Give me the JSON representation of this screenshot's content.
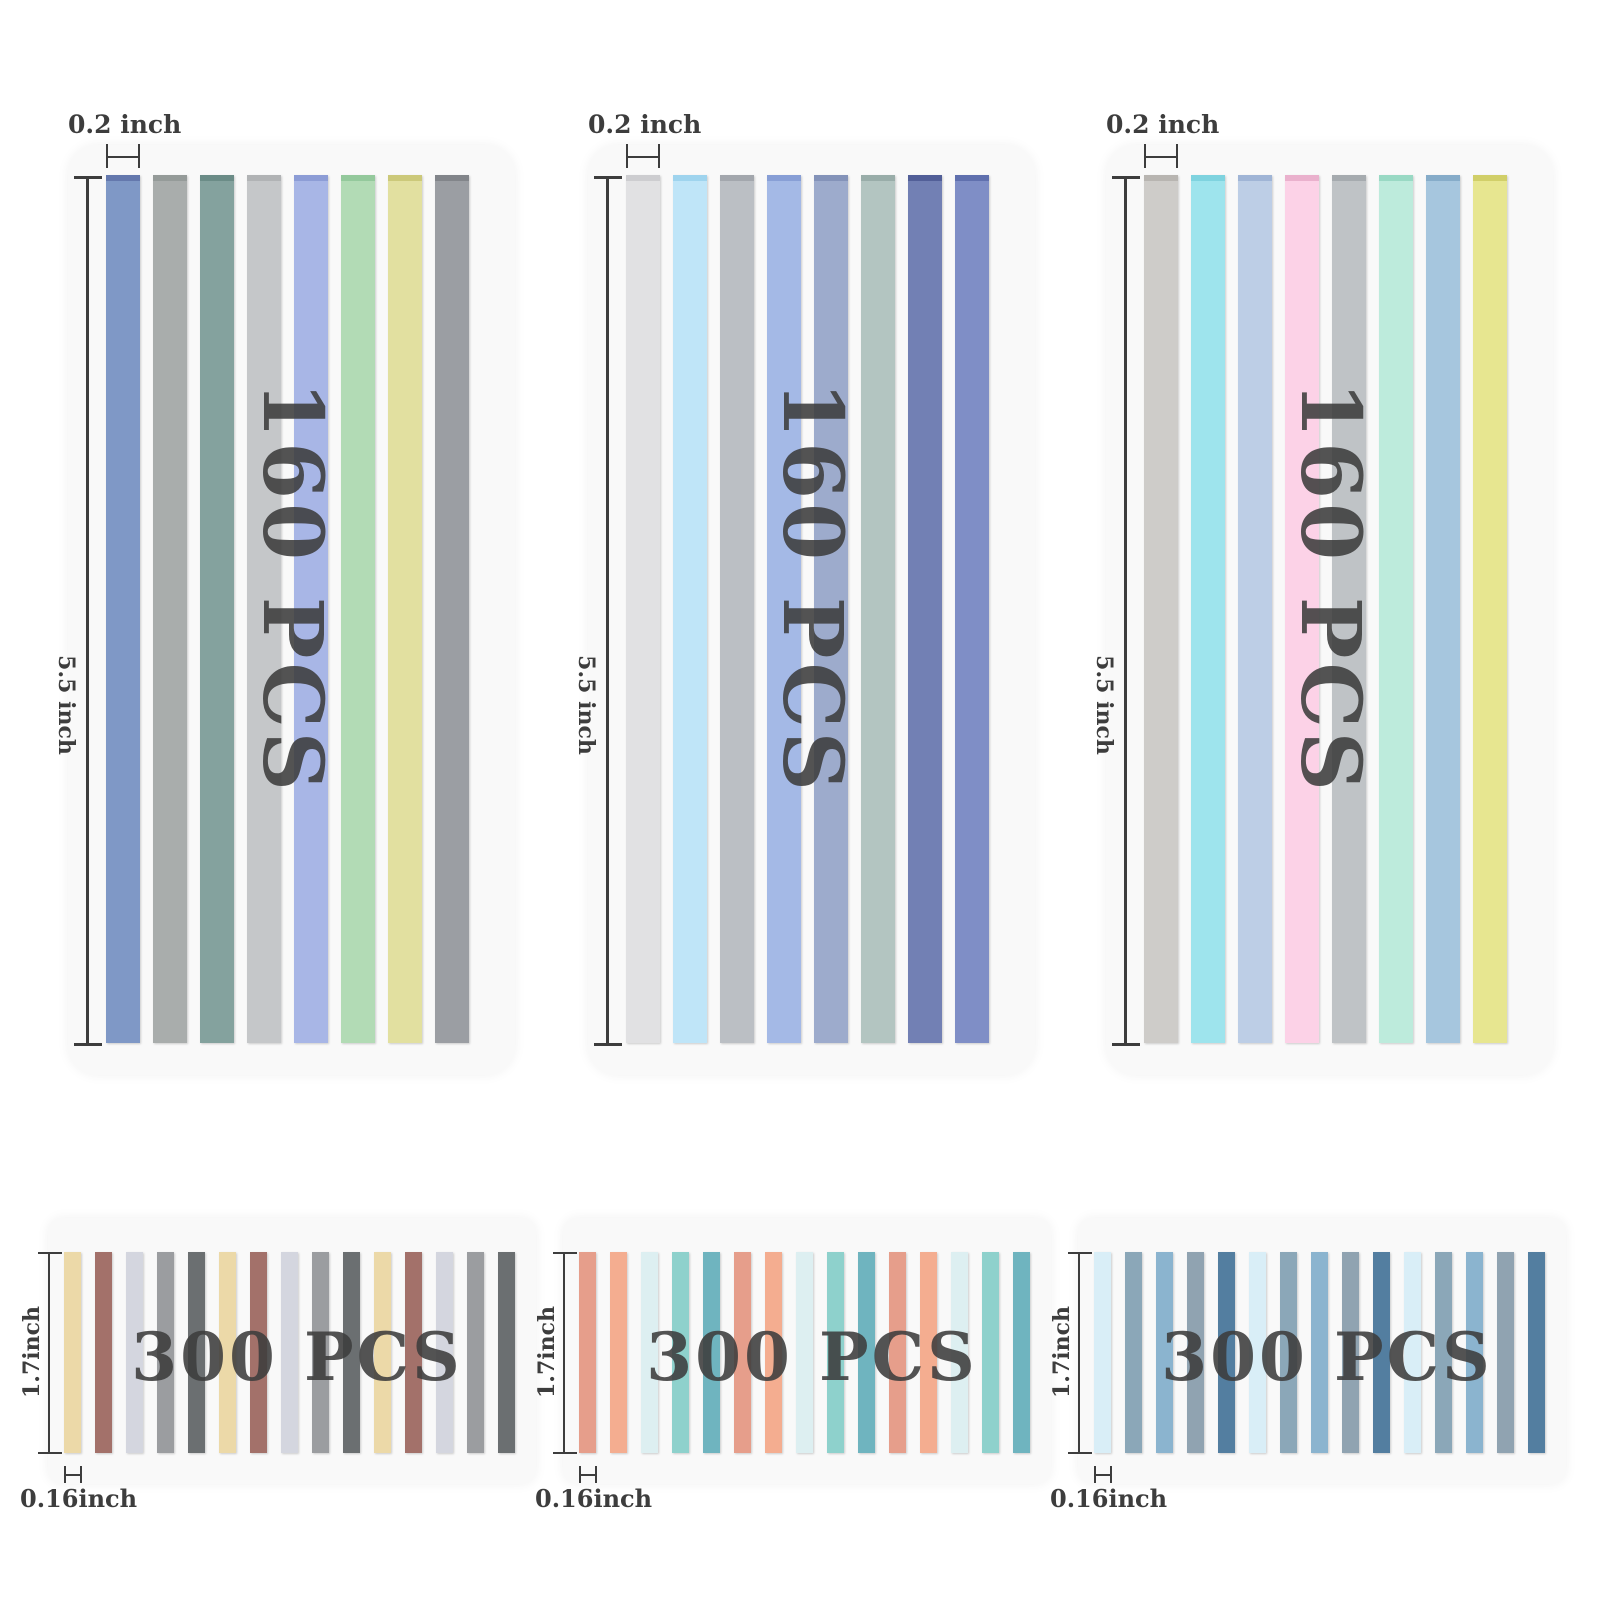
{
  "large_sets": [
    {
      "count_label": "160 PCS",
      "width_label": "0.2 inch",
      "height_label": "5.5 inch",
      "colors": [
        "#7f98c6",
        "#a9adac",
        "#84a29e",
        "#c5c7c9",
        "#a8b6e6",
        "#b2dbb5",
        "#e2e0a0",
        "#9b9ea3"
      ],
      "caps": [
        "#6478ad",
        "#959b99",
        "#6b8c87",
        "#b1b3b5",
        "#8d9dd6",
        "#94c99c",
        "#ccc97a",
        "#82858a"
      ]
    },
    {
      "count_label": "160 PCS",
      "width_label": "0.2 inch",
      "height_label": "5.5 inch",
      "colors": [
        "#e1e1e3",
        "#bfe5f8",
        "#bbbfc4",
        "#a4b9e6",
        "#9dabcc",
        "#b3c5c1",
        "#7280b4",
        "#7f8ec6"
      ],
      "caps": [
        "#cdcdd0",
        "#9fd4ee",
        "#a3a7ad",
        "#889fd6",
        "#8493b9",
        "#99ada9",
        "#525f98",
        "#6070ae"
      ]
    },
    {
      "count_label": "160 PCS",
      "width_label": "0.2 inch",
      "height_label": "5.5 inch",
      "colors": [
        "#ceccc9",
        "#9ee4ed",
        "#bdcee6",
        "#fcd2e7",
        "#bfc3c6",
        "#bdebdc",
        "#a6c6de",
        "#e7e690"
      ],
      "caps": [
        "#b8b5b1",
        "#7fd3df",
        "#a0b5d6",
        "#eab1cd",
        "#a6abaf",
        "#99d9c4",
        "#86acc9",
        "#d1cf69"
      ]
    }
  ],
  "small_sets": [
    {
      "count_label": "300 PCS",
      "width_label": "0.16inch",
      "height_label": "1.7inch",
      "colors": [
        "#ecd9a8",
        "#a3716a",
        "#d4d6df",
        "#9b9da0",
        "#6b6f71",
        "#ecd9a8",
        "#a3716a",
        "#d4d6df",
        "#9b9da0",
        "#6b6f71",
        "#ecd9a8",
        "#a3716a",
        "#d4d6df",
        "#9b9da0",
        "#6b6f71"
      ]
    },
    {
      "count_label": "300 PCS",
      "width_label": "0.16inch",
      "height_label": "1.7inch",
      "colors": [
        "#e69e8b",
        "#f4ad90",
        "#ddeff1",
        "#8ed1cc",
        "#6fb4bf",
        "#e69e8b",
        "#f4ad90",
        "#ddeff1",
        "#8ed1cc",
        "#6fb4bf",
        "#e69e8b",
        "#f4ad90",
        "#ddeff1",
        "#8ed1cc",
        "#6fb4bf"
      ]
    },
    {
      "count_label": "300 PCS",
      "width_label": "0.16inch",
      "height_label": "1.7inch",
      "colors": [
        "#d9eef7",
        "#8ba7b8",
        "#8bb4cf",
        "#90a3b1",
        "#537ea0",
        "#d9eef7",
        "#8ba7b8",
        "#8bb4cf",
        "#90a3b1",
        "#537ea0",
        "#d9eef7",
        "#8ba7b8",
        "#8bb4cf",
        "#90a3b1",
        "#537ea0"
      ]
    }
  ]
}
